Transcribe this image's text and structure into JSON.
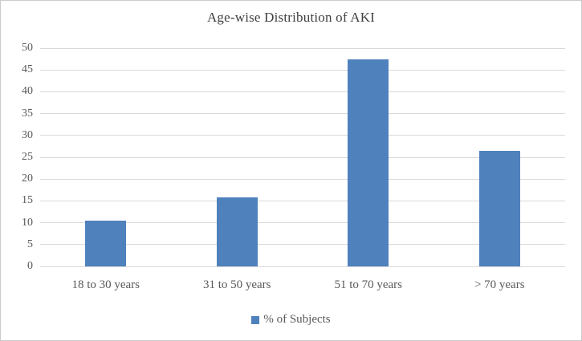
{
  "chart_data": {
    "type": "bar",
    "title": "Age-wise Distribution of AKI",
    "categories": [
      "18 to 30 years",
      "31 to 50 years",
      "51 to 70 years",
      "> 70 years"
    ],
    "series": [
      {
        "name": "% of Subjects",
        "values": [
          10.5,
          15.8,
          47.5,
          26.5
        ]
      }
    ],
    "legend": [
      "% of Subjects"
    ],
    "legend_position": "bottom",
    "xlabel": "",
    "ylabel": "",
    "ylim": [
      0,
      50
    ],
    "yticks": [
      0,
      5,
      10,
      15,
      20,
      25,
      30,
      35,
      40,
      45,
      50
    ],
    "grid": "horizontal",
    "colors": {
      "bar": "#4F81BD",
      "gridline": "#D9D9D9",
      "tick_text": "#595959",
      "title_text": "#404040",
      "frame_border": "#CBCBCB"
    }
  }
}
